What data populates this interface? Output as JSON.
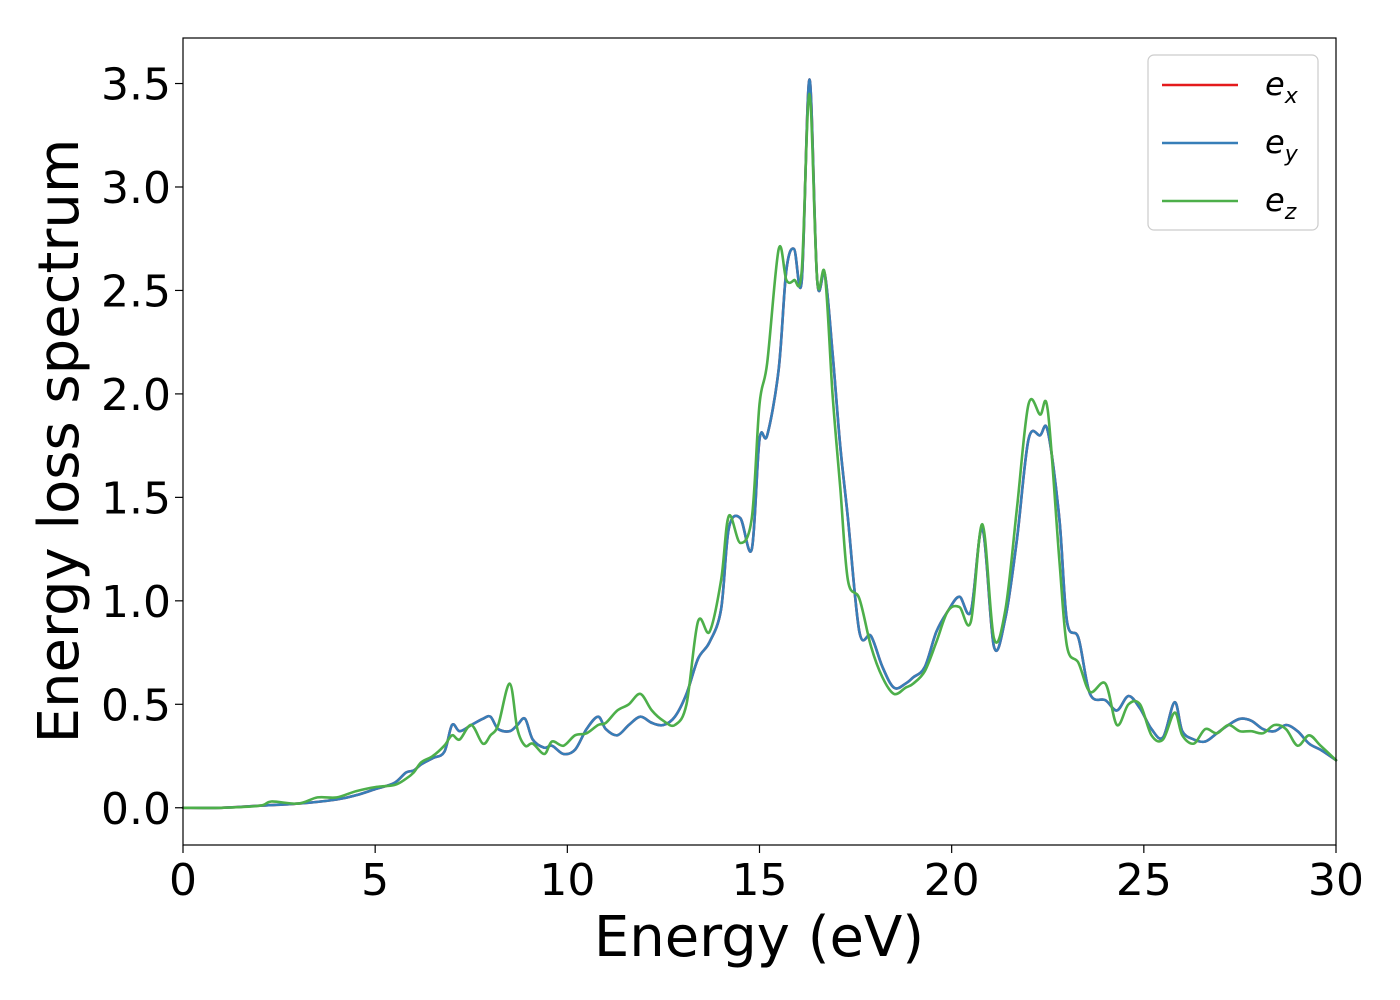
{
  "chart_data": {
    "type": "line",
    "title": "",
    "xlabel": "Energy (eV)",
    "ylabel": "Energy loss spectrum",
    "xlim": [
      0,
      30
    ],
    "ylim": [
      -0.18,
      3.72
    ],
    "xticks": [
      0,
      5,
      10,
      15,
      20,
      25,
      30
    ],
    "xtick_labels": [
      "0",
      "5",
      "10",
      "15",
      "20",
      "25",
      "30"
    ],
    "yticks": [
      0.0,
      0.5,
      1.0,
      1.5,
      2.0,
      2.5,
      3.0,
      3.5
    ],
    "ytick_labels": [
      "0.0",
      "0.5",
      "1.0",
      "1.5",
      "2.0",
      "2.5",
      "3.0",
      "3.5"
    ],
    "grid": false,
    "legend_position": "top-right",
    "series": [
      {
        "name": "e",
        "subscript": "x",
        "color": "#e41a1c",
        "x": [
          0,
          1,
          2,
          3,
          4,
          4.5,
          5,
          5.5,
          5.8,
          6,
          6.2,
          6.5,
          6.8,
          7,
          7.2,
          7.5,
          7.8,
          8,
          8.2,
          8.5,
          8.7,
          8.9,
          9.1,
          9.4,
          9.6,
          9.9,
          10.2,
          10.5,
          10.8,
          11,
          11.3,
          11.6,
          11.9,
          12.2,
          12.5,
          12.8,
          13.1,
          13.4,
          13.7,
          14,
          14.2,
          14.5,
          14.8,
          15,
          15.2,
          15.5,
          15.7,
          15.9,
          16.1,
          16.3,
          16.5,
          16.7,
          16.9,
          17.1,
          17.3,
          17.6,
          17.9,
          18.2,
          18.5,
          18.8,
          19,
          19.3,
          19.6,
          19.9,
          20.2,
          20.5,
          20.8,
          21.1,
          21.4,
          21.7,
          22,
          22.3,
          22.5,
          22.8,
          23,
          23.3,
          23.6,
          24,
          24.3,
          24.6,
          24.9,
          25.2,
          25.5,
          25.8,
          26,
          26.3,
          26.6,
          26.9,
          27.2,
          27.5,
          27.8,
          28.1,
          28.4,
          28.7,
          29,
          29.3,
          29.6,
          30
        ],
        "y": [
          0,
          0,
          0.01,
          0.02,
          0.04,
          0.06,
          0.09,
          0.12,
          0.17,
          0.18,
          0.21,
          0.24,
          0.27,
          0.4,
          0.37,
          0.4,
          0.43,
          0.44,
          0.38,
          0.37,
          0.4,
          0.43,
          0.33,
          0.29,
          0.3,
          0.26,
          0.28,
          0.38,
          0.44,
          0.38,
          0.35,
          0.4,
          0.44,
          0.41,
          0.4,
          0.44,
          0.55,
          0.72,
          0.8,
          0.96,
          1.35,
          1.4,
          1.25,
          1.78,
          1.8,
          2.12,
          2.6,
          2.7,
          2.55,
          3.52,
          2.55,
          2.58,
          2.2,
          1.75,
          1.4,
          0.85,
          0.83,
          0.68,
          0.58,
          0.6,
          0.63,
          0.68,
          0.85,
          0.95,
          1.02,
          0.95,
          1.35,
          0.78,
          0.92,
          1.3,
          1.78,
          1.8,
          1.82,
          1.4,
          0.9,
          0.82,
          0.55,
          0.52,
          0.47,
          0.54,
          0.48,
          0.38,
          0.34,
          0.51,
          0.37,
          0.33,
          0.32,
          0.36,
          0.4,
          0.43,
          0.42,
          0.38,
          0.37,
          0.4,
          0.37,
          0.31,
          0.28,
          0.23
        ]
      },
      {
        "name": "e",
        "subscript": "y",
        "color": "#377eb8",
        "x": [
          0,
          1,
          2,
          3,
          4,
          4.5,
          5,
          5.5,
          5.8,
          6,
          6.2,
          6.5,
          6.8,
          7,
          7.2,
          7.5,
          7.8,
          8,
          8.2,
          8.5,
          8.7,
          8.9,
          9.1,
          9.4,
          9.6,
          9.9,
          10.2,
          10.5,
          10.8,
          11,
          11.3,
          11.6,
          11.9,
          12.2,
          12.5,
          12.8,
          13.1,
          13.4,
          13.7,
          14,
          14.2,
          14.5,
          14.8,
          15,
          15.2,
          15.5,
          15.7,
          15.9,
          16.1,
          16.3,
          16.5,
          16.7,
          16.9,
          17.1,
          17.3,
          17.6,
          17.9,
          18.2,
          18.5,
          18.8,
          19,
          19.3,
          19.6,
          19.9,
          20.2,
          20.5,
          20.8,
          21.1,
          21.4,
          21.7,
          22,
          22.3,
          22.5,
          22.8,
          23,
          23.3,
          23.6,
          24,
          24.3,
          24.6,
          24.9,
          25.2,
          25.5,
          25.8,
          26,
          26.3,
          26.6,
          26.9,
          27.2,
          27.5,
          27.8,
          28.1,
          28.4,
          28.7,
          29,
          29.3,
          29.6,
          30
        ],
        "y": [
          0,
          0,
          0.01,
          0.02,
          0.04,
          0.06,
          0.09,
          0.12,
          0.17,
          0.18,
          0.21,
          0.24,
          0.27,
          0.4,
          0.37,
          0.4,
          0.43,
          0.44,
          0.38,
          0.37,
          0.4,
          0.43,
          0.33,
          0.29,
          0.3,
          0.26,
          0.28,
          0.38,
          0.44,
          0.38,
          0.35,
          0.4,
          0.44,
          0.41,
          0.4,
          0.44,
          0.55,
          0.72,
          0.8,
          0.96,
          1.35,
          1.4,
          1.25,
          1.78,
          1.8,
          2.12,
          2.6,
          2.7,
          2.55,
          3.52,
          2.55,
          2.58,
          2.2,
          1.75,
          1.4,
          0.85,
          0.83,
          0.68,
          0.58,
          0.6,
          0.63,
          0.68,
          0.85,
          0.95,
          1.02,
          0.95,
          1.35,
          0.78,
          0.92,
          1.3,
          1.78,
          1.8,
          1.82,
          1.4,
          0.9,
          0.82,
          0.55,
          0.52,
          0.47,
          0.54,
          0.48,
          0.38,
          0.34,
          0.51,
          0.37,
          0.33,
          0.32,
          0.36,
          0.4,
          0.43,
          0.42,
          0.38,
          0.37,
          0.4,
          0.37,
          0.31,
          0.28,
          0.23
        ]
      },
      {
        "name": "e",
        "subscript": "z",
        "color": "#4daf4a",
        "x": [
          0,
          1,
          2,
          2.3,
          3,
          3.5,
          4,
          4.5,
          5,
          5.5,
          5.8,
          6,
          6.2,
          6.5,
          6.8,
          7,
          7.2,
          7.5,
          7.8,
          8,
          8.2,
          8.5,
          8.7,
          8.9,
          9.1,
          9.4,
          9.6,
          9.9,
          10.2,
          10.5,
          10.8,
          11,
          11.3,
          11.6,
          11.9,
          12.2,
          12.5,
          12.8,
          13.1,
          13.4,
          13.7,
          14,
          14.2,
          14.5,
          14.8,
          15,
          15.2,
          15.5,
          15.7,
          15.9,
          16.1,
          16.3,
          16.5,
          16.7,
          16.9,
          17.1,
          17.3,
          17.6,
          17.9,
          18.2,
          18.5,
          18.8,
          19,
          19.3,
          19.6,
          19.9,
          20.2,
          20.5,
          20.8,
          21.1,
          21.4,
          21.7,
          22,
          22.3,
          22.5,
          22.8,
          23,
          23.3,
          23.6,
          24,
          24.3,
          24.6,
          24.9,
          25.2,
          25.5,
          25.8,
          26,
          26.3,
          26.6,
          26.9,
          27.2,
          27.5,
          27.8,
          28.1,
          28.4,
          28.7,
          29,
          29.3,
          29.6,
          30
        ],
        "y": [
          0,
          0,
          0.01,
          0.03,
          0.02,
          0.05,
          0.05,
          0.08,
          0.1,
          0.11,
          0.14,
          0.17,
          0.22,
          0.25,
          0.3,
          0.35,
          0.33,
          0.4,
          0.31,
          0.35,
          0.4,
          0.6,
          0.38,
          0.3,
          0.31,
          0.26,
          0.32,
          0.3,
          0.35,
          0.36,
          0.4,
          0.41,
          0.47,
          0.5,
          0.55,
          0.47,
          0.42,
          0.4,
          0.5,
          0.9,
          0.85,
          1.1,
          1.41,
          1.28,
          1.4,
          1.95,
          2.15,
          2.7,
          2.55,
          2.55,
          2.6,
          3.45,
          2.55,
          2.58,
          2.0,
          1.55,
          1.1,
          1.01,
          0.78,
          0.63,
          0.55,
          0.58,
          0.6,
          0.66,
          0.8,
          0.95,
          0.97,
          0.9,
          1.37,
          0.82,
          0.96,
          1.45,
          1.95,
          1.9,
          1.92,
          1.2,
          0.78,
          0.7,
          0.56,
          0.6,
          0.4,
          0.5,
          0.5,
          0.35,
          0.33,
          0.46,
          0.35,
          0.31,
          0.38,
          0.36,
          0.4,
          0.37,
          0.37,
          0.36,
          0.4,
          0.38,
          0.3,
          0.35,
          0.3,
          0.23
        ]
      }
    ]
  }
}
